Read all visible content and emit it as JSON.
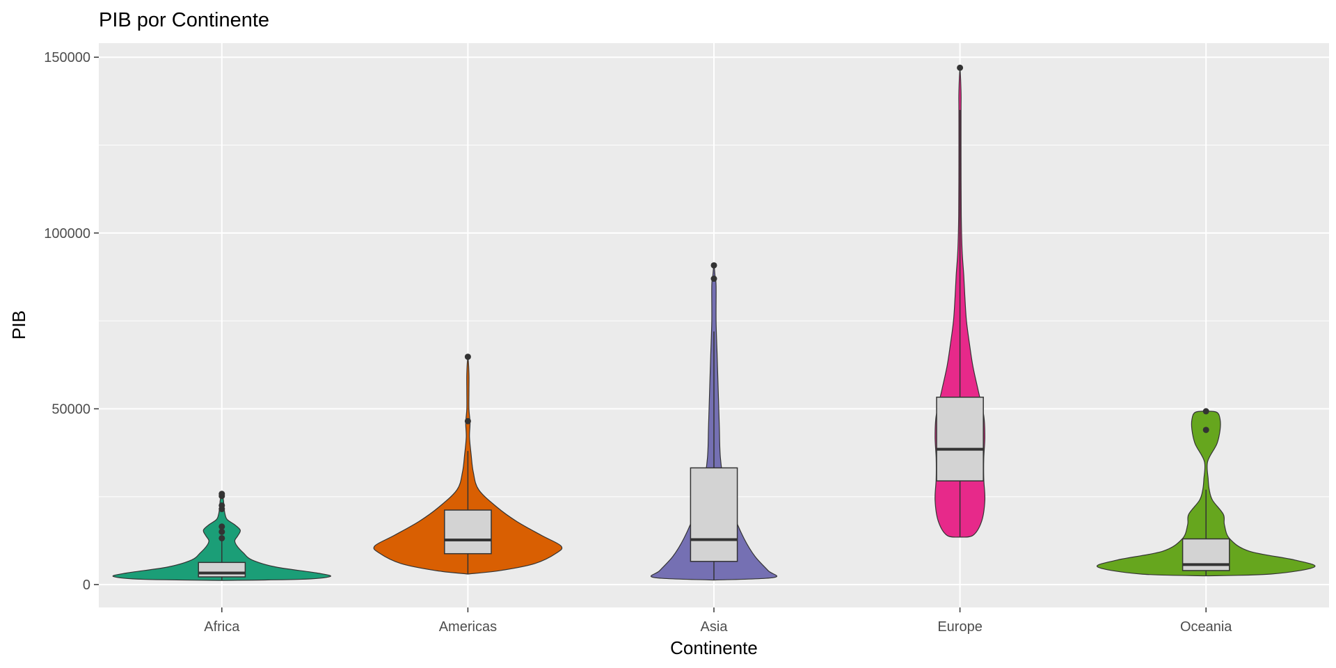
{
  "chart_data": {
    "type": "violin",
    "title": "PIB por Continente",
    "xlabel": "Continente",
    "ylabel": "PIB",
    "ylim": [
      -6500,
      154000
    ],
    "yticks": [
      0,
      50000,
      100000,
      150000
    ],
    "ytick_labels": [
      "0",
      "50000",
      "100000",
      "150000"
    ],
    "grid": true,
    "legend": "none",
    "categories": [
      "Africa",
      "Americas",
      "Asia",
      "Europe",
      "Oceania"
    ],
    "colors": {
      "Africa": "#1b9e77",
      "Americas": "#d95f02",
      "Asia": "#7570b3",
      "Europe": "#e7298a",
      "Oceania": "#66a61e",
      "box_fill": "#d3d3d3",
      "panel": "#ebebeb",
      "gridline": "#ffffff"
    },
    "series": [
      {
        "category": "Africa",
        "violin": [
          [
            1200,
            0.0
          ],
          [
            1500,
            0.72
          ],
          [
            2300,
            1.0
          ],
          [
            3300,
            0.88
          ],
          [
            5000,
            0.5
          ],
          [
            7000,
            0.28
          ],
          [
            9000,
            0.2
          ],
          [
            11000,
            0.14
          ],
          [
            12500,
            0.12
          ],
          [
            14000,
            0.15
          ],
          [
            15500,
            0.17
          ],
          [
            17000,
            0.12
          ],
          [
            18500,
            0.05
          ],
          [
            20000,
            0.03
          ],
          [
            22000,
            0.02
          ],
          [
            24000,
            0.015
          ],
          [
            25800,
            0.0
          ]
        ],
        "box": {
          "q1": 2200,
          "median": 3300,
          "q3": 6300,
          "whisker_low": 1200,
          "whisker_high": 12500
        },
        "outliers": [
          13200,
          15000,
          16500,
          21500,
          22500,
          25200,
          25800
        ]
      },
      {
        "category": "Americas",
        "violin": [
          [
            3000,
            0.0
          ],
          [
            4000,
            0.3
          ],
          [
            6000,
            0.62
          ],
          [
            9000,
            0.82
          ],
          [
            11000,
            0.86
          ],
          [
            14000,
            0.68
          ],
          [
            18000,
            0.45
          ],
          [
            22000,
            0.27
          ],
          [
            27000,
            0.1
          ],
          [
            32000,
            0.05
          ],
          [
            37000,
            0.03
          ],
          [
            42000,
            0.015
          ],
          [
            46000,
            0.02
          ],
          [
            50000,
            0.01
          ],
          [
            55000,
            0.01
          ],
          [
            60000,
            0.01
          ],
          [
            64800,
            0.0
          ]
        ],
        "box": {
          "q1": 8800,
          "median": 12700,
          "q3": 21200,
          "whisker_low": 3000,
          "whisker_high": 38000
        },
        "outliers": [
          46500,
          64800
        ]
      },
      {
        "category": "Asia",
        "violin": [
          [
            1300,
            0.0
          ],
          [
            2000,
            0.55
          ],
          [
            4000,
            0.5
          ],
          [
            8000,
            0.38
          ],
          [
            13000,
            0.28
          ],
          [
            20000,
            0.18
          ],
          [
            28000,
            0.1
          ],
          [
            36000,
            0.06
          ],
          [
            45000,
            0.05
          ],
          [
            55000,
            0.04
          ],
          [
            65000,
            0.03
          ],
          [
            75000,
            0.02
          ],
          [
            85000,
            0.02
          ],
          [
            88000,
            0.01
          ],
          [
            90800,
            0.0
          ]
        ],
        "box": {
          "q1": 6600,
          "median": 12800,
          "q3": 33200,
          "whisker_low": 1300,
          "whisker_high": 72000
        },
        "outliers": [
          87000,
          90800
        ]
      },
      {
        "category": "Europe",
        "violin": [
          [
            13500,
            0.0
          ],
          [
            14000,
            0.12
          ],
          [
            18000,
            0.2
          ],
          [
            24000,
            0.23
          ],
          [
            30000,
            0.22
          ],
          [
            36000,
            0.22
          ],
          [
            42000,
            0.23
          ],
          [
            48000,
            0.22
          ],
          [
            55000,
            0.17
          ],
          [
            62000,
            0.12
          ],
          [
            68000,
            0.09
          ],
          [
            75000,
            0.06
          ],
          [
            82000,
            0.045
          ],
          [
            88000,
            0.035
          ],
          [
            95000,
            0.02
          ],
          [
            105000,
            0.012
          ],
          [
            120000,
            0.01
          ],
          [
            135000,
            0.01
          ],
          [
            140000,
            0.01
          ],
          [
            147000,
            0.0
          ]
        ],
        "box": {
          "q1": 29500,
          "median": 38500,
          "q3": 53300,
          "whisker_low": 13500,
          "whisker_high": 135000
        },
        "outliers": [
          147000
        ]
      },
      {
        "category": "Oceania",
        "violin": [
          [
            2500,
            0.0
          ],
          [
            3000,
            0.6
          ],
          [
            5000,
            1.0
          ],
          [
            7000,
            0.82
          ],
          [
            9500,
            0.4
          ],
          [
            13000,
            0.22
          ],
          [
            17000,
            0.17
          ],
          [
            20000,
            0.16
          ],
          [
            24000,
            0.06
          ],
          [
            27000,
            0.03
          ],
          [
            30000,
            0.02
          ],
          [
            35000,
            0.015
          ],
          [
            40000,
            0.1
          ],
          [
            44000,
            0.13
          ],
          [
            47000,
            0.13
          ],
          [
            49000,
            0.1
          ],
          [
            49300,
            0.0
          ]
        ],
        "box": {
          "q1": 4000,
          "median": 5700,
          "q3": 13000,
          "whisker_low": 2500,
          "whisker_high": 27000
        },
        "outliers": [
          44000,
          49300
        ]
      }
    ]
  }
}
